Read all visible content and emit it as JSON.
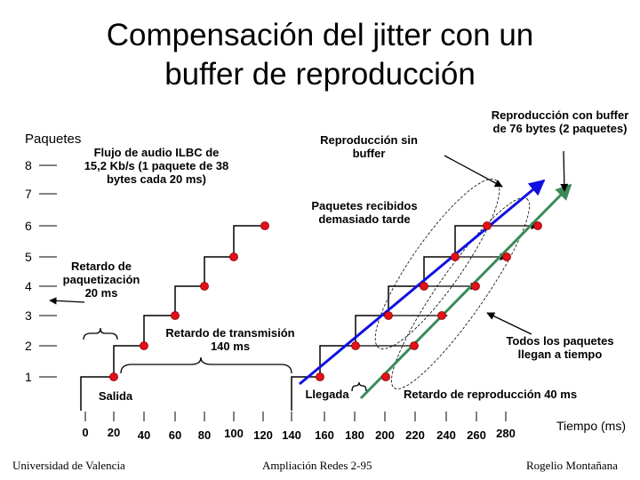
{
  "title": {
    "line1": "Compensación del jitter con un",
    "line2": "buffer de reproducción"
  },
  "y_axis": {
    "label": "Paquetes",
    "ticks": [
      "8",
      "7",
      "6",
      "5",
      "4",
      "3",
      "2",
      "1"
    ]
  },
  "x_axis": {
    "label": "Tiempo (ms)",
    "ticks": [
      "0",
      "20",
      "40",
      "60",
      "80",
      "100",
      "120",
      "140",
      "160",
      "180",
      "200",
      "220",
      "240",
      "260",
      "280"
    ]
  },
  "annotations": {
    "audio_flow": "Flujo de audio ILBC de 15,2 Kb/s (1 paquete de 38 bytes cada 20 ms)",
    "playback_no_buffer": "Reproducción sin buffer",
    "playback_buffer": "Reproducción con buffer de 76 bytes (2 paquetes)",
    "late_packets": "Paquetes recibidos demasiado tarde",
    "packetization_delay": "Retardo de paquetización 20 ms",
    "transmission_delay": "Retardo de transmisión 140 ms",
    "all_on_time": "Todos los paquetes llegan a tiempo",
    "departure": "Salida",
    "arrival": "Llegada",
    "playback_delay": "Retardo de reproducción 40 ms"
  },
  "colors": {
    "points": "#e3101a",
    "no_buffer_line": "#1010e0",
    "buffer_line": "#3a8a5a",
    "lines": "#000000"
  },
  "footer": {
    "left": "Universidad de Valencia",
    "center": "Ampliación Redes 2-95",
    "right": "Rogelio Montañana"
  }
}
